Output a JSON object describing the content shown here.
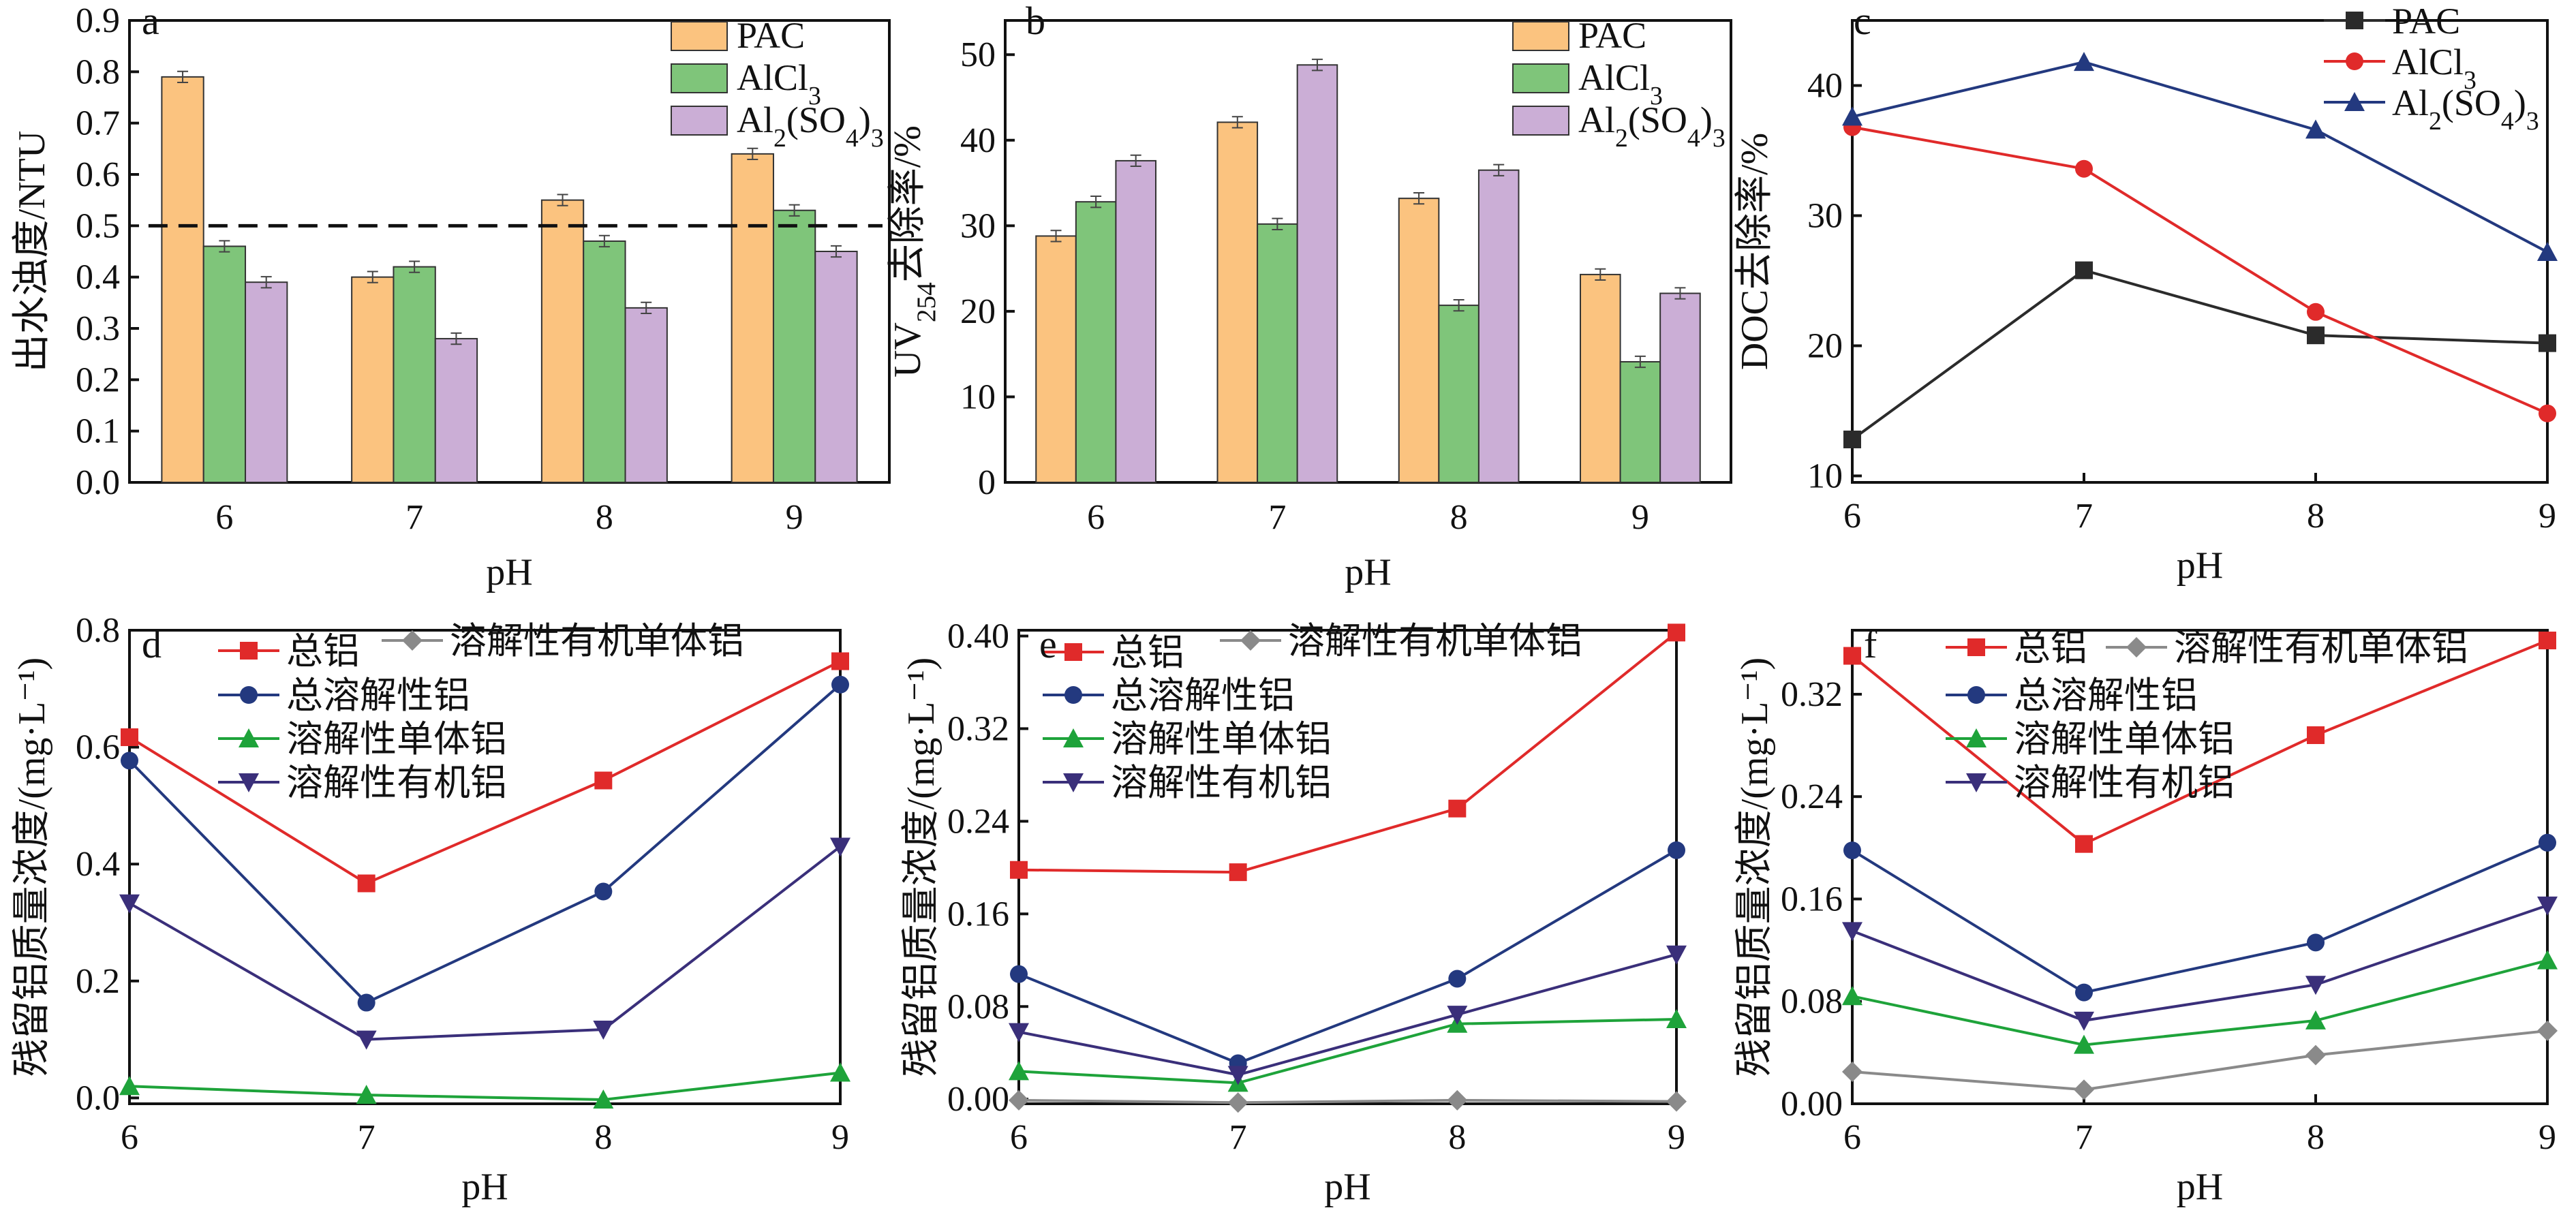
{
  "colors": {
    "PAC_bar": "#fbc37f",
    "AlCl3_bar": "#7fc57a",
    "Al2SO4_bar": "#cbaed6",
    "black": "#2b2b2b",
    "red": "#e02a2a",
    "blue": "#23397f",
    "green": "#1ea33a",
    "purple": "#3a2f7a",
    "gray": "#8a8a8a"
  },
  "chart_data": [
    {
      "panel": "a",
      "type": "bar",
      "xlabel": "pH",
      "ylabel": "出水浊度/NTU",
      "categories": [
        "6",
        "7",
        "8",
        "9"
      ],
      "ylim": [
        0,
        0.9
      ],
      "yticks": [
        "0.0",
        "0.1",
        "0.2",
        "0.3",
        "0.4",
        "0.5",
        "0.6",
        "0.7",
        "0.8",
        "0.9"
      ],
      "reference_line": 0.5,
      "series": [
        {
          "name": "PAC",
          "values": [
            0.79,
            0.4,
            0.55,
            0.64
          ]
        },
        {
          "name": "AlCl3",
          "values": [
            0.46,
            0.42,
            0.47,
            0.53
          ]
        },
        {
          "name": "Al2(SO4)3",
          "values": [
            0.39,
            0.28,
            0.34,
            0.45
          ]
        }
      ]
    },
    {
      "panel": "b",
      "type": "bar",
      "xlabel": "pH",
      "ylabel": "UV254去除率/%",
      "categories": [
        "6",
        "7",
        "8",
        "9"
      ],
      "ylim": [
        0,
        54
      ],
      "yticks": [
        "0",
        "10",
        "20",
        "30",
        "40",
        "50"
      ],
      "series": [
        {
          "name": "PAC",
          "values": [
            28.8,
            42.1,
            33.2,
            24.3
          ]
        },
        {
          "name": "AlCl3",
          "values": [
            32.8,
            30.2,
            20.7,
            14.1
          ]
        },
        {
          "name": "Al2(SO4)3",
          "values": [
            37.6,
            48.8,
            36.5,
            22.1
          ]
        }
      ]
    },
    {
      "panel": "c",
      "type": "line",
      "xlabel": "pH",
      "ylabel": "DOC去除率/%",
      "x": [
        6,
        7,
        8,
        9
      ],
      "xticks": [
        "6",
        "7",
        "8",
        "9"
      ],
      "ylim": [
        9.5,
        45
      ],
      "yticks": [
        "10",
        "20",
        "30",
        "40"
      ],
      "series": [
        {
          "name": "PAC",
          "values": [
            12.8,
            25.8,
            20.8,
            20.2
          ]
        },
        {
          "name": "AlCl3",
          "values": [
            36.8,
            33.6,
            22.6,
            14.8
          ]
        },
        {
          "name": "Al2(SO4)3",
          "values": [
            37.6,
            41.8,
            36.6,
            27.2
          ]
        }
      ]
    },
    {
      "panel": "d",
      "type": "line",
      "xlabel": "pH",
      "ylabel": "残留铝质量浓度/(mg·L⁻¹)",
      "x": [
        6,
        7,
        8,
        9
      ],
      "xticks": [
        "6",
        "7",
        "8",
        "9"
      ],
      "ylim": [
        -0.01,
        0.8
      ],
      "yticks": [
        "0.0",
        "0.2",
        "0.4",
        "0.6",
        "0.8"
      ],
      "series": [
        {
          "name": "总铝",
          "values": [
            0.617,
            0.367,
            0.543,
            0.747
          ]
        },
        {
          "name": "溶解性有机单体铝",
          "values": [
            null,
            null,
            null,
            null
          ]
        },
        {
          "name": "总溶解性铝",
          "values": [
            0.577,
            0.163,
            0.353,
            0.707
          ]
        },
        {
          "name": "溶解性单体铝",
          "values": [
            0.02,
            0.005,
            -0.003,
            0.043
          ]
        },
        {
          "name": "溶解性有机铝",
          "values": [
            0.333,
            0.1,
            0.117,
            0.43
          ]
        }
      ]
    },
    {
      "panel": "e",
      "type": "line",
      "xlabel": "pH",
      "ylabel": "残留铝质量浓度/(mg·L⁻¹)",
      "x": [
        6,
        7,
        8,
        9
      ],
      "xticks": [
        "6",
        "7",
        "8",
        "9"
      ],
      "ylim": [
        -0.004,
        0.405
      ],
      "yticks": [
        "0.00",
        "0.08",
        "0.16",
        "0.24",
        "0.32",
        "0.40"
      ],
      "series": [
        {
          "name": "总铝",
          "values": [
            0.198,
            0.196,
            0.251,
            0.403
          ]
        },
        {
          "name": "溶解性有机单体铝",
          "values": [
            -0.001,
            -0.003,
            -0.001,
            -0.002
          ]
        },
        {
          "name": "总溶解性铝",
          "values": [
            0.108,
            0.031,
            0.104,
            0.215
          ]
        },
        {
          "name": "溶解性单体铝",
          "values": [
            0.024,
            0.014,
            0.065,
            0.069
          ]
        },
        {
          "name": "溶解性有机铝",
          "values": [
            0.058,
            0.021,
            0.073,
            0.125
          ]
        }
      ]
    },
    {
      "panel": "f",
      "type": "line",
      "xlabel": "pH",
      "ylabel": "残留铝质量浓度/(mg·L⁻¹)",
      "x": [
        6,
        7,
        8,
        9
      ],
      "xticks": [
        "6",
        "7",
        "8",
        "9"
      ],
      "ylim": [
        0,
        0.37
      ],
      "yticks": [
        "0.00",
        "0.08",
        "0.16",
        "0.24",
        "0.32"
      ],
      "series": [
        {
          "name": "总铝",
          "values": [
            0.35,
            0.203,
            0.288,
            0.362
          ]
        },
        {
          "name": "溶解性有机单体铝",
          "values": [
            0.025,
            0.011,
            0.038,
            0.057
          ]
        },
        {
          "name": "总溶解性铝",
          "values": [
            0.198,
            0.087,
            0.126,
            0.204
          ]
        },
        {
          "name": "溶解性单体铝",
          "values": [
            0.084,
            0.046,
            0.065,
            0.112
          ]
        },
        {
          "name": "溶解性有机铝",
          "values": [
            0.135,
            0.065,
            0.093,
            0.155
          ]
        }
      ]
    }
  ]
}
